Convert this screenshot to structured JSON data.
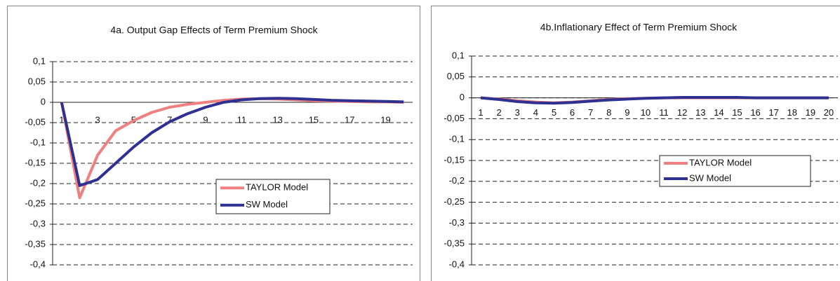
{
  "chart_data": [
    {
      "type": "line",
      "title": "4a. Output Gap Effects of Term Premium Shock",
      "categories": [
        "1",
        null,
        "3",
        null,
        "5",
        null,
        "7",
        null,
        "9",
        null,
        "11",
        null,
        "13",
        null,
        "15",
        null,
        "17",
        null,
        "19",
        null
      ],
      "series": [
        {
          "name": "TAYLOR Model",
          "color": "#f08080",
          "values": [
            0,
            -0.235,
            -0.13,
            -0.07,
            -0.045,
            -0.025,
            -0.012,
            -0.005,
            0,
            0.005,
            0.008,
            0.009,
            0.008,
            0.006,
            0.004,
            0.003,
            0.002,
            0.001,
            0.001,
            0
          ]
        },
        {
          "name": "SW Model",
          "color": "#2e3192",
          "values": [
            0,
            -0.205,
            -0.19,
            -0.15,
            -0.11,
            -0.075,
            -0.048,
            -0.028,
            -0.012,
            0,
            0.006,
            0.009,
            0.01,
            0.009,
            0.007,
            0.005,
            0.004,
            0.003,
            0.002,
            0.001
          ]
        }
      ],
      "ylim": [
        -0.4,
        0.1
      ],
      "yticks": [
        {
          "value": 0.1,
          "label": "0,1"
        },
        {
          "value": 0.05,
          "label": "0,05"
        },
        0,
        {
          "value": -0.05,
          "label": "-0,05"
        },
        {
          "value": -0.1,
          "label": "-0,1"
        },
        {
          "value": -0.15,
          "label": "-0,15"
        },
        {
          "value": -0.2,
          "label": "-0,2"
        },
        {
          "value": -0.25,
          "label": "-0,25"
        },
        {
          "value": -0.3,
          "label": "-0,3"
        },
        {
          "value": -0.35,
          "label": "-0,35"
        },
        {
          "value": -0.4,
          "label": "-0,4"
        }
      ],
      "grid": true
    },
    {
      "type": "line",
      "title": "4b.Inflationary Effect of Term Premium Shock",
      "categories": [
        "1",
        "2",
        "3",
        "4",
        "5",
        "6",
        "7",
        "8",
        "9",
        "10",
        "11",
        "12",
        "13",
        "14",
        "15",
        "16",
        "17",
        "18",
        "19",
        "20"
      ],
      "series": [
        {
          "name": "TAYLOR Model",
          "color": "#f08080",
          "values": [
            0,
            -0.003,
            -0.007,
            -0.01,
            -0.012,
            -0.01,
            -0.007,
            -0.004,
            -0.002,
            -0.001,
            0,
            0,
            0,
            0,
            0,
            0,
            0,
            0,
            0,
            0
          ]
        },
        {
          "name": "SW Model",
          "color": "#2e3192",
          "values": [
            0,
            -0.004,
            -0.009,
            -0.012,
            -0.013,
            -0.011,
            -0.008,
            -0.005,
            -0.003,
            -0.001,
            0,
            0.001,
            0.001,
            0.001,
            0.001,
            0,
            0,
            0,
            0,
            0
          ]
        }
      ],
      "ylim": [
        -0.4,
        0.1
      ],
      "yticks": [
        {
          "value": 0.1,
          "label": "0,1"
        },
        {
          "value": 0.05,
          "label": "0,05"
        },
        0,
        {
          "value": -0.05,
          "label": "-0,05"
        },
        {
          "value": -0.1,
          "label": "-0,1"
        },
        {
          "value": -0.15,
          "label": "-0,15"
        },
        {
          "value": -0.2,
          "label": "-0,2"
        },
        {
          "value": -0.25,
          "label": "-0,25"
        },
        {
          "value": -0.3,
          "label": "-0,3"
        },
        {
          "value": -0.35,
          "label": "-0,35"
        },
        {
          "value": -0.4,
          "label": "-0,4"
        }
      ],
      "grid": true
    }
  ]
}
